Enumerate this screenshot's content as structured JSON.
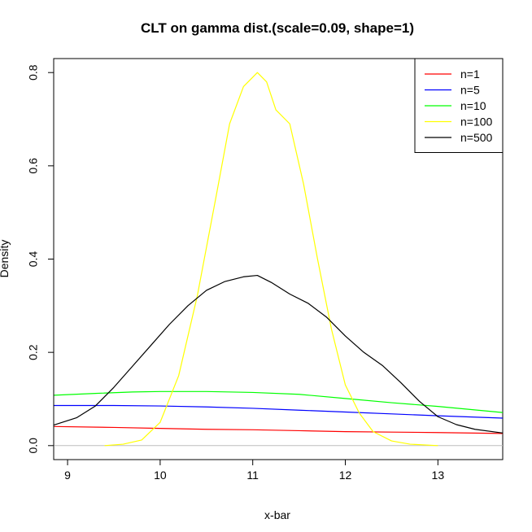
{
  "chart_data": {
    "type": "line",
    "title": "CLT on gamma dist.(scale=0.09, shape=1)",
    "xlabel": "x-bar",
    "ylabel": "Density",
    "xlim": [
      8.85,
      13.7
    ],
    "ylim": [
      -0.03,
      0.83
    ],
    "x_ticks": [
      9,
      10,
      11,
      12,
      13
    ],
    "y_ticks": [
      0.0,
      0.2,
      0.4,
      0.6,
      0.8
    ],
    "x_tick_labels": [
      "9",
      "10",
      "11",
      "12",
      "13"
    ],
    "y_tick_labels": [
      "0.0",
      "0.2",
      "0.4",
      "0.6",
      "0.8"
    ],
    "baseline": {
      "y": 0,
      "color": "#bebebe"
    },
    "grid": false,
    "legend_position": "top-right",
    "series": [
      {
        "name": "n=1",
        "color": "#ff0000",
        "points": [
          [
            8.85,
            0.041
          ],
          [
            9.5,
            0.039
          ],
          [
            10.0,
            0.037
          ],
          [
            10.5,
            0.035
          ],
          [
            11.0,
            0.034
          ],
          [
            11.5,
            0.032
          ],
          [
            12.0,
            0.03
          ],
          [
            12.5,
            0.029
          ],
          [
            13.0,
            0.028
          ],
          [
            13.7,
            0.026
          ]
        ]
      },
      {
        "name": "n=5",
        "color": "#0000ff",
        "points": [
          [
            8.85,
            0.086
          ],
          [
            9.5,
            0.086
          ],
          [
            10.0,
            0.085
          ],
          [
            10.5,
            0.083
          ],
          [
            11.0,
            0.08
          ],
          [
            11.5,
            0.076
          ],
          [
            12.0,
            0.072
          ],
          [
            12.5,
            0.068
          ],
          [
            13.0,
            0.064
          ],
          [
            13.7,
            0.059
          ]
        ]
      },
      {
        "name": "n=10",
        "color": "#00ff00",
        "points": [
          [
            8.85,
            0.108
          ],
          [
            9.3,
            0.112
          ],
          [
            9.7,
            0.115
          ],
          [
            10.0,
            0.116
          ],
          [
            10.5,
            0.116
          ],
          [
            11.0,
            0.114
          ],
          [
            11.5,
            0.11
          ],
          [
            12.0,
            0.101
          ],
          [
            12.5,
            0.092
          ],
          [
            13.0,
            0.084
          ],
          [
            13.7,
            0.071
          ]
        ]
      },
      {
        "name": "n=100",
        "color": "#ffff00",
        "points": [
          [
            9.4,
            0.0
          ],
          [
            9.6,
            0.003
          ],
          [
            9.8,
            0.012
          ],
          [
            10.0,
            0.05
          ],
          [
            10.2,
            0.15
          ],
          [
            10.4,
            0.32
          ],
          [
            10.6,
            0.53
          ],
          [
            10.75,
            0.69
          ],
          [
            10.9,
            0.77
          ],
          [
            11.05,
            0.8
          ],
          [
            11.15,
            0.78
          ],
          [
            11.25,
            0.72
          ],
          [
            11.4,
            0.69
          ],
          [
            11.55,
            0.56
          ],
          [
            11.7,
            0.4
          ],
          [
            11.85,
            0.25
          ],
          [
            12.0,
            0.13
          ],
          [
            12.15,
            0.07
          ],
          [
            12.3,
            0.03
          ],
          [
            12.5,
            0.01
          ],
          [
            12.7,
            0.003
          ],
          [
            13.0,
            0.0
          ]
        ]
      },
      {
        "name": "n=500",
        "color": "#000000",
        "points": [
          [
            8.85,
            0.044
          ],
          [
            9.1,
            0.06
          ],
          [
            9.3,
            0.085
          ],
          [
            9.5,
            0.125
          ],
          [
            9.7,
            0.17
          ],
          [
            9.9,
            0.215
          ],
          [
            10.1,
            0.26
          ],
          [
            10.3,
            0.3
          ],
          [
            10.5,
            0.333
          ],
          [
            10.7,
            0.352
          ],
          [
            10.9,
            0.362
          ],
          [
            11.05,
            0.365
          ],
          [
            11.2,
            0.35
          ],
          [
            11.4,
            0.325
          ],
          [
            11.6,
            0.305
          ],
          [
            11.8,
            0.275
          ],
          [
            12.0,
            0.235
          ],
          [
            12.2,
            0.2
          ],
          [
            12.4,
            0.172
          ],
          [
            12.6,
            0.135
          ],
          [
            12.8,
            0.095
          ],
          [
            13.0,
            0.062
          ],
          [
            13.2,
            0.045
          ],
          [
            13.4,
            0.035
          ],
          [
            13.7,
            0.027
          ]
        ]
      }
    ]
  }
}
